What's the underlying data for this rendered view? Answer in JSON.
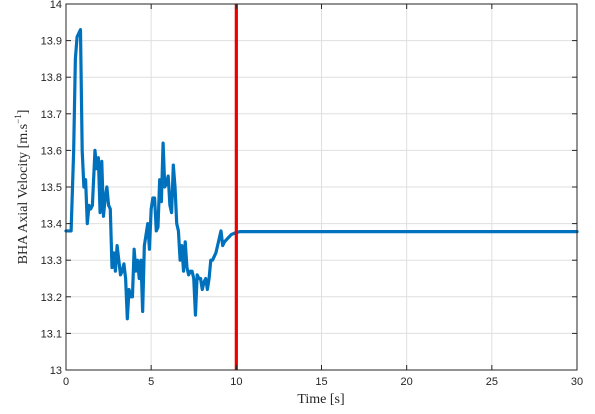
{
  "chart_data": {
    "type": "line",
    "title": "",
    "xlabel": "Time [s]",
    "ylabel_main": "BHA Axial Velocity [m.s",
    "ylabel_sup": "−1",
    "ylabel_close": "]",
    "xlim": [
      0,
      30
    ],
    "ylim": [
      13,
      14
    ],
    "xticks": [
      "0",
      "5",
      "10",
      "15",
      "20",
      "25",
      "30"
    ],
    "yticks": [
      "13",
      "13.1",
      "13.2",
      "13.3",
      "13.4",
      "13.5",
      "13.6",
      "13.7",
      "13.8",
      "13.9",
      "14"
    ],
    "grid": true,
    "series": [
      {
        "color": "#0072bd",
        "x": [
          0,
          0.3,
          0.45,
          0.55,
          0.65,
          0.75,
          0.85,
          0.95,
          1.05,
          1.15,
          1.25,
          1.35,
          1.45,
          1.55,
          1.7,
          1.8,
          1.9,
          2.0,
          2.1,
          2.2,
          2.3,
          2.4,
          2.5,
          2.6,
          2.7,
          2.8,
          2.9,
          3.0,
          3.1,
          3.2,
          3.3,
          3.4,
          3.5,
          3.6,
          3.7,
          3.8,
          3.9,
          4.0,
          4.1,
          4.2,
          4.3,
          4.4,
          4.5,
          4.6,
          4.7,
          4.8,
          4.9,
          5.0,
          5.1,
          5.2,
          5.3,
          5.4,
          5.5,
          5.6,
          5.7,
          5.8,
          5.9,
          6.0,
          6.1,
          6.2,
          6.3,
          6.4,
          6.5,
          6.6,
          6.7,
          6.8,
          6.9,
          7.0,
          7.1,
          7.2,
          7.3,
          7.4,
          7.5,
          7.6,
          7.7,
          7.8,
          7.9,
          8.0,
          8.1,
          8.2,
          8.3,
          8.4,
          8.5,
          8.6,
          8.7,
          8.8,
          8.9,
          9.0,
          9.1,
          9.2,
          9.3,
          9.4,
          9.5,
          9.6,
          9.7,
          9.8,
          9.9,
          10.0,
          10.1,
          10.2,
          10.3,
          10.4,
          10.6,
          11.0,
          11.5,
          12.0,
          12.5,
          12.7,
          13.0,
          14.0,
          15.0,
          16.0,
          17.0,
          18.0,
          20.0,
          22.0,
          25.0,
          28.0,
          30.0
        ],
        "y": [
          13.38,
          13.38,
          13.6,
          13.85,
          13.91,
          13.92,
          13.93,
          13.6,
          13.5,
          13.52,
          13.4,
          13.45,
          13.44,
          13.45,
          13.6,
          13.55,
          13.58,
          13.43,
          13.57,
          13.42,
          13.47,
          13.5,
          13.45,
          13.44,
          13.28,
          13.32,
          13.27,
          13.34,
          13.3,
          13.26,
          13.27,
          13.29,
          13.25,
          13.14,
          13.22,
          13.2,
          13.2,
          13.33,
          13.27,
          13.3,
          13.25,
          13.3,
          13.16,
          13.34,
          13.37,
          13.4,
          13.33,
          13.44,
          13.47,
          13.47,
          13.38,
          13.39,
          13.52,
          13.46,
          13.62,
          13.5,
          13.51,
          13.53,
          13.45,
          13.43,
          13.56,
          13.5,
          13.4,
          13.38,
          13.3,
          13.34,
          13.27,
          13.35,
          13.28,
          13.26,
          13.27,
          13.27,
          13.25,
          13.15,
          13.26,
          13.25,
          13.25,
          13.22,
          13.24,
          13.25,
          13.22,
          13.25,
          13.3,
          13.3,
          13.31,
          13.32,
          13.34,
          13.36,
          13.38,
          13.34,
          13.35,
          13.355,
          13.36,
          13.365,
          13.37,
          13.372,
          13.374,
          13.376,
          13.377,
          13.378,
          13.378,
          13.378,
          13.378,
          13.378,
          13.378,
          13.378,
          13.378,
          13.378,
          13.378,
          13.378,
          13.378,
          13.378,
          13.378,
          13.378,
          13.378,
          13.378,
          13.378,
          13.378,
          13.378
        ]
      }
    ],
    "vertical_line": {
      "x": 10,
      "color": "#ee0000"
    }
  }
}
